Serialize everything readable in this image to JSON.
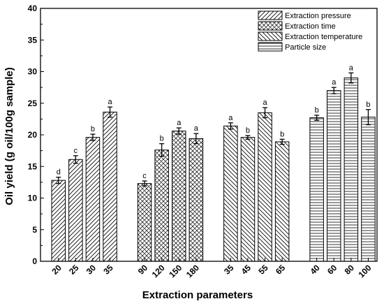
{
  "chart_data": {
    "type": "bar",
    "xlabel": "Extraction parameters",
    "ylabel": "Oil yield (g oil/100g sample)",
    "ylim": [
      0,
      40
    ],
    "yticks": [
      0,
      5,
      10,
      15,
      20,
      25,
      30,
      35,
      40
    ],
    "grid": false,
    "legend_position": "top-right",
    "groups": [
      {
        "name": "Extraction pressure",
        "pattern": "diag-right",
        "categories": [
          "20",
          "25",
          "30",
          "35"
        ],
        "values": [
          12.8,
          16.1,
          19.6,
          23.6
        ],
        "errors": [
          0.5,
          0.6,
          0.5,
          0.8
        ],
        "labels": [
          "d",
          "c",
          "b",
          "a"
        ]
      },
      {
        "name": "Extraction time",
        "pattern": "cross",
        "categories": [
          "90",
          "120",
          "150",
          "180"
        ],
        "values": [
          12.3,
          17.6,
          20.6,
          19.4
        ],
        "errors": [
          0.4,
          1.0,
          0.5,
          0.8
        ],
        "labels": [
          "c",
          "b",
          "a",
          "a"
        ]
      },
      {
        "name": "Extraction temperature",
        "pattern": "diag-left",
        "categories": [
          "35",
          "45",
          "55",
          "65"
        ],
        "values": [
          21.4,
          19.6,
          23.5,
          18.9
        ],
        "errors": [
          0.5,
          0.3,
          0.8,
          0.4
        ],
        "labels": [
          "a",
          "b",
          "a",
          "b"
        ]
      },
      {
        "name": "Particle size",
        "pattern": "horizontal",
        "categories": [
          "40",
          "60",
          "80",
          "100"
        ],
        "values": [
          22.7,
          27.0,
          29.0,
          22.8
        ],
        "errors": [
          0.4,
          0.5,
          0.8,
          1.2
        ],
        "labels": [
          "b",
          "a",
          "a",
          "b"
        ]
      }
    ]
  }
}
